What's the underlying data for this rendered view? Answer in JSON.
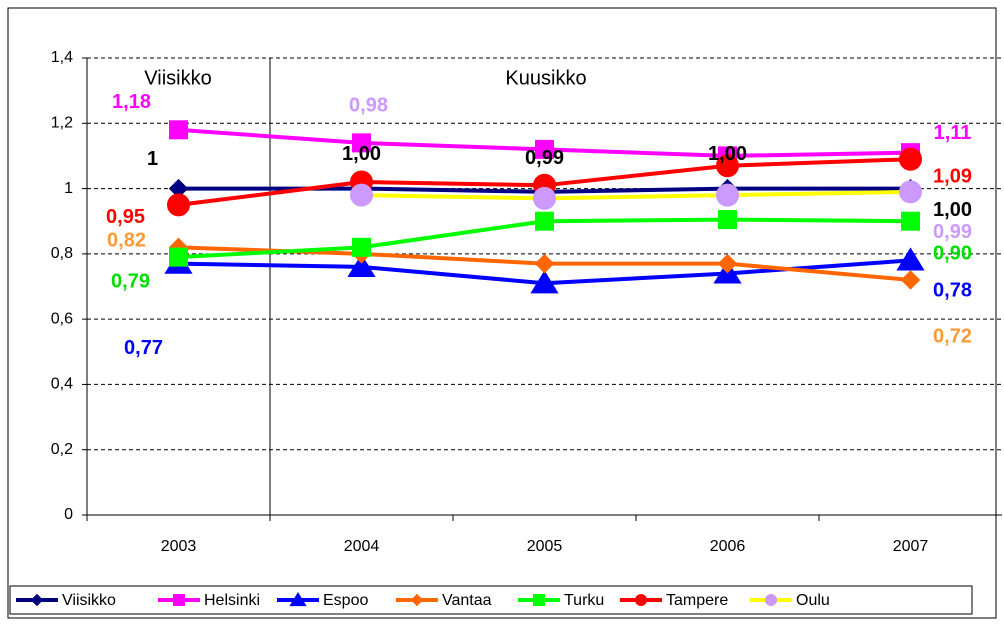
{
  "chart_data": {
    "type": "line",
    "categories": [
      "2003",
      "2004",
      "2005",
      "2006",
      "2007"
    ],
    "ylim": [
      0,
      1.4
    ],
    "yticks": [
      0,
      {
        "value": 0.2,
        "label": "0,2"
      },
      {
        "value": 0.4,
        "label": "0,4"
      },
      {
        "value": 0.6,
        "label": "0,6"
      },
      {
        "value": 0.8,
        "label": "0,8"
      },
      1,
      {
        "value": 1.2,
        "label": "1,2"
      },
      {
        "value": 1.4,
        "label": "1,4"
      }
    ],
    "grid": true,
    "annotations": [
      "Viisikko",
      "Kuusikko"
    ],
    "legend": "bottom",
    "series": [
      {
        "name": "Viisikko",
        "color": "#000080",
        "marker": "diamond",
        "label_color": "#000000",
        "values": [
          1,
          1.0,
          0.99,
          1.0,
          1.0
        ],
        "value_labels": [
          "1",
          "1,00",
          "0,99",
          "1,00",
          "1,00"
        ]
      },
      {
        "name": "Helsinki",
        "color": "#ff00ff",
        "marker": "square",
        "label_color": "#ff00ff",
        "values": [
          1.18,
          1.14,
          1.12,
          1.1,
          1.11
        ],
        "value_labels": [
          "1,18",
          null,
          null,
          null,
          "1,11"
        ]
      },
      {
        "name": "Espoo",
        "color": "#0000ff",
        "marker": "triangle",
        "label_color": "#0000ff",
        "values": [
          0.77,
          0.76,
          0.71,
          0.74,
          0.78
        ],
        "value_labels": [
          "0,77",
          null,
          null,
          null,
          "0,78"
        ]
      },
      {
        "name": "Vantaa",
        "color": "#ff6600",
        "marker": "diamond",
        "label_color": "#ff9933",
        "values": [
          0.82,
          0.8,
          0.77,
          0.77,
          0.72
        ],
        "value_labels": [
          "0,82",
          null,
          null,
          null,
          "0,72"
        ]
      },
      {
        "name": "Turku",
        "color": "#00ff00",
        "marker": "square",
        "label_color": "#00dd00",
        "values": [
          0.79,
          0.82,
          0.9,
          0.905,
          0.9
        ],
        "value_labels": [
          "0,79",
          null,
          null,
          null,
          "0,90"
        ]
      },
      {
        "name": "Tampere",
        "color": "#ff0000",
        "marker": "circle",
        "label_color": "#ff0000",
        "values": [
          0.95,
          1.02,
          1.01,
          1.07,
          1.09
        ],
        "value_labels": [
          "0,95",
          null,
          null,
          null,
          "1,09"
        ]
      },
      {
        "name": "Oulu",
        "color": "#ffff00",
        "marker": "circle",
        "marker_color": "#cc99ff",
        "label_color": "#cc99ff",
        "values": [
          null,
          0.98,
          0.97,
          0.98,
          0.99
        ],
        "value_labels": [
          null,
          "0,98",
          null,
          null,
          "0,99"
        ]
      }
    ]
  }
}
